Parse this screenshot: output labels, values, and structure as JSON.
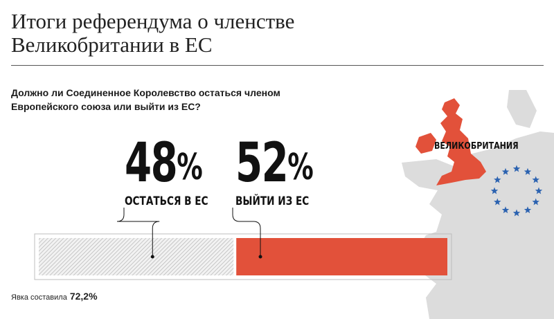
{
  "header": {
    "title_line1": "Итоги референдума о членстве",
    "title_line2": "Великобритании в ЕС"
  },
  "question": {
    "line1": "Должно ли Соединенное Королевство остаться членом",
    "line2": "Европейского союза или выйти из ЕС?"
  },
  "map": {
    "label": "ВЕЛИКОБРИТАНИЯ",
    "uk_color": "#e2513a",
    "land_color": "#dcdcdc",
    "eu_star_color": "#2b62b0"
  },
  "chart_data": {
    "type": "bar",
    "orientation": "horizontal-stacked",
    "categories": [
      "ОСТАТЬСЯ В ЕС",
      "ВЫЙТИ ИЗ ЕС"
    ],
    "values": [
      48,
      52
    ],
    "value_labels": [
      "48",
      "52"
    ],
    "unit": "%",
    "colors": [
      "hatched-gray",
      "#e2513a"
    ]
  },
  "footer": {
    "turnout_label": "Явка составила",
    "turnout_value": "72,2%"
  }
}
